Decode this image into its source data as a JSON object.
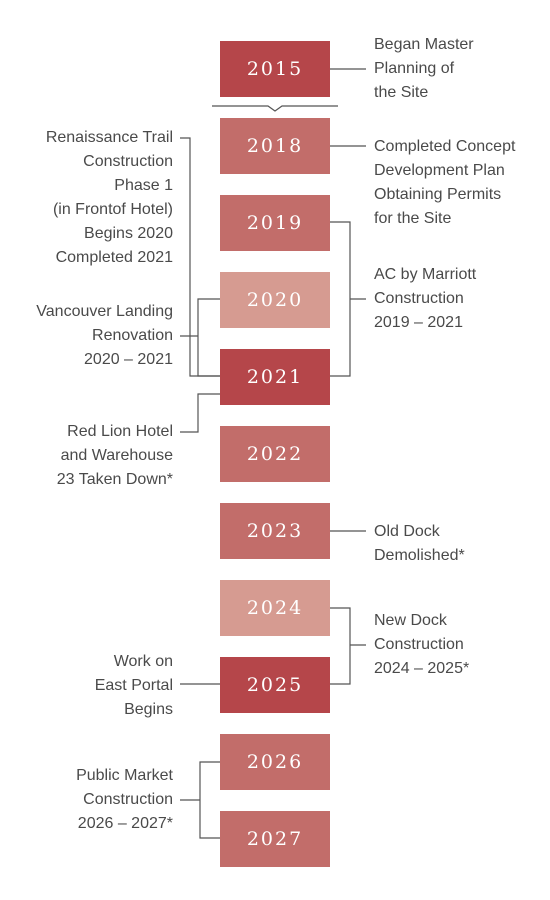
{
  "years": [
    {
      "label": "2015",
      "shade": "dark"
    },
    {
      "label": "2018",
      "shade": "mid"
    },
    {
      "label": "2019",
      "shade": "mid"
    },
    {
      "label": "2020",
      "shade": "light"
    },
    {
      "label": "2021",
      "shade": "dark"
    },
    {
      "label": "2022",
      "shade": "mid"
    },
    {
      "label": "2023",
      "shade": "mid"
    },
    {
      "label": "2024",
      "shade": "light"
    },
    {
      "label": "2025",
      "shade": "dark"
    },
    {
      "label": "2026",
      "shade": "mid"
    },
    {
      "label": "2027",
      "shade": "mid"
    }
  ],
  "notes": {
    "master_planning": [
      "Began Master",
      "Planning of",
      "the Site"
    ],
    "concept_plan": [
      "Completed Concept",
      "Development Plan",
      "Obtaining Permits",
      "for the Site"
    ],
    "ac_marriott": [
      "AC by Marriott",
      "Construction",
      "2019 – 2021"
    ],
    "old_dock": [
      "Old Dock",
      "Demolished*"
    ],
    "new_dock": [
      "New Dock",
      "Construction",
      "2024 – 2025*"
    ],
    "renaissance_trail": [
      "Renaissance Trail",
      "Construction",
      "Phase 1",
      "(in Frontof Hotel)",
      "Begins 2020",
      "Completed 2021"
    ],
    "vancouver_landing": [
      "Vancouver Landing",
      "Renovation",
      "2020 – 2021"
    ],
    "red_lion": [
      "Red Lion Hotel",
      "and Warehouse",
      "23 Taken Down*"
    ],
    "east_portal": [
      "Work on",
      "East Portal",
      "Begins"
    ],
    "public_market": [
      "Public Market",
      "Construction",
      "2026 – 2027*"
    ]
  },
  "colors": {
    "dark": "#b5464a",
    "mid": "#c26d6a",
    "light": "#d69b91",
    "line": "#555555",
    "text": "#4a4a4a"
  }
}
